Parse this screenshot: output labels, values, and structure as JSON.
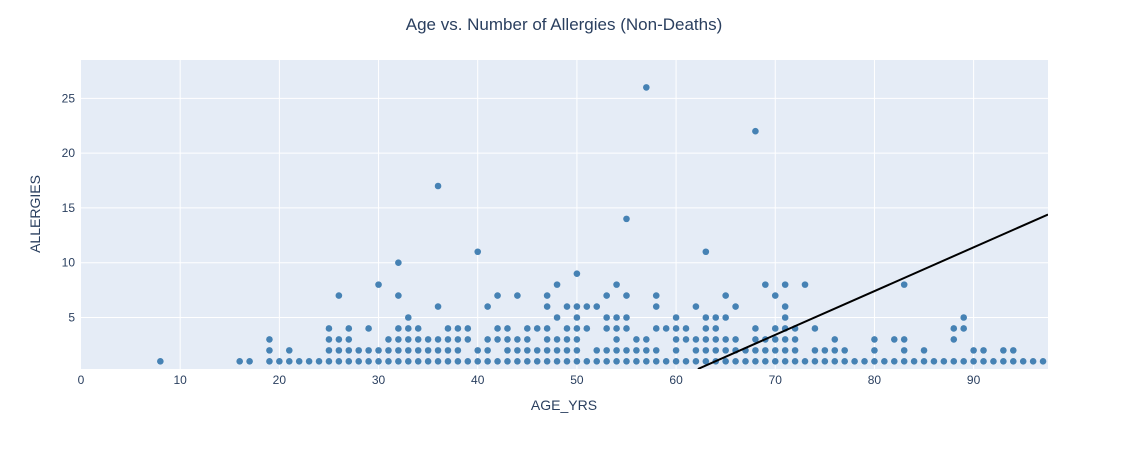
{
  "chart_data": {
    "type": "scatter",
    "title": "Age vs. Number of Allergies (Non-Deaths)",
    "xlabel": "AGE_YRS",
    "ylabel": "ALLERGIES",
    "xlim": [
      0,
      97.5
    ],
    "ylim": [
      0.3,
      28.5
    ],
    "xticks": [
      0,
      10,
      20,
      30,
      40,
      50,
      60,
      70,
      80,
      90
    ],
    "yticks": [
      5,
      10,
      15,
      20,
      25
    ],
    "grid": true,
    "legend": "none",
    "colors": {
      "background": "#e5ecf6",
      "grid": "#ffffff",
      "marker": "#4682b4",
      "trendline": "#000000",
      "text": "#2a3f5f"
    },
    "series": [
      {
        "points": [
          [
            8,
            1
          ],
          [
            16,
            1
          ],
          [
            17,
            1
          ],
          [
            19,
            1
          ],
          [
            19,
            2
          ],
          [
            19,
            3
          ],
          [
            20,
            1
          ],
          [
            21,
            1
          ],
          [
            21,
            2
          ],
          [
            22,
            1
          ],
          [
            23,
            1
          ],
          [
            24,
            1
          ],
          [
            25,
            1
          ],
          [
            25,
            2
          ],
          [
            25,
            3
          ],
          [
            25,
            4
          ],
          [
            26,
            1
          ],
          [
            26,
            2
          ],
          [
            26,
            3
          ],
          [
            26,
            7
          ],
          [
            27,
            1
          ],
          [
            27,
            2
          ],
          [
            27,
            3
          ],
          [
            27,
            4
          ],
          [
            28,
            1
          ],
          [
            28,
            2
          ],
          [
            29,
            1
          ],
          [
            29,
            2
          ],
          [
            29,
            4
          ],
          [
            30,
            1
          ],
          [
            30,
            2
          ],
          [
            30,
            8
          ],
          [
            31,
            1
          ],
          [
            31,
            2
          ],
          [
            31,
            3
          ],
          [
            32,
            1
          ],
          [
            32,
            2
          ],
          [
            32,
            3
          ],
          [
            32,
            4
          ],
          [
            32,
            7
          ],
          [
            32,
            10
          ],
          [
            33,
            1
          ],
          [
            33,
            2
          ],
          [
            33,
            3
          ],
          [
            33,
            4
          ],
          [
            33,
            5
          ],
          [
            34,
            1
          ],
          [
            34,
            2
          ],
          [
            34,
            3
          ],
          [
            34,
            4
          ],
          [
            35,
            1
          ],
          [
            35,
            2
          ],
          [
            35,
            3
          ],
          [
            36,
            1
          ],
          [
            36,
            2
          ],
          [
            36,
            3
          ],
          [
            36,
            6
          ],
          [
            36,
            17
          ],
          [
            37,
            1
          ],
          [
            37,
            2
          ],
          [
            37,
            3
          ],
          [
            37,
            4
          ],
          [
            38,
            1
          ],
          [
            38,
            2
          ],
          [
            38,
            3
          ],
          [
            38,
            4
          ],
          [
            39,
            1
          ],
          [
            39,
            3
          ],
          [
            39,
            4
          ],
          [
            40,
            1
          ],
          [
            40,
            2
          ],
          [
            40,
            11
          ],
          [
            41,
            1
          ],
          [
            41,
            2
          ],
          [
            41,
            3
          ],
          [
            41,
            6
          ],
          [
            42,
            1
          ],
          [
            42,
            3
          ],
          [
            42,
            4
          ],
          [
            42,
            7
          ],
          [
            43,
            1
          ],
          [
            43,
            2
          ],
          [
            43,
            3
          ],
          [
            43,
            4
          ],
          [
            44,
            1
          ],
          [
            44,
            2
          ],
          [
            44,
            3
          ],
          [
            44,
            7
          ],
          [
            45,
            1
          ],
          [
            45,
            2
          ],
          [
            45,
            3
          ],
          [
            45,
            4
          ],
          [
            46,
            1
          ],
          [
            46,
            2
          ],
          [
            46,
            4
          ],
          [
            47,
            1
          ],
          [
            47,
            2
          ],
          [
            47,
            3
          ],
          [
            47,
            4
          ],
          [
            47,
            6
          ],
          [
            47,
            7
          ],
          [
            48,
            1
          ],
          [
            48,
            2
          ],
          [
            48,
            3
          ],
          [
            48,
            5
          ],
          [
            48,
            8
          ],
          [
            49,
            1
          ],
          [
            49,
            2
          ],
          [
            49,
            3
          ],
          [
            49,
            4
          ],
          [
            49,
            6
          ],
          [
            50,
            1
          ],
          [
            50,
            2
          ],
          [
            50,
            3
          ],
          [
            50,
            4
          ],
          [
            50,
            5
          ],
          [
            50,
            6
          ],
          [
            50,
            9
          ],
          [
            51,
            1
          ],
          [
            51,
            4
          ],
          [
            51,
            6
          ],
          [
            52,
            1
          ],
          [
            52,
            2
          ],
          [
            52,
            6
          ],
          [
            53,
            1
          ],
          [
            53,
            2
          ],
          [
            53,
            4
          ],
          [
            53,
            5
          ],
          [
            53,
            7
          ],
          [
            54,
            1
          ],
          [
            54,
            2
          ],
          [
            54,
            3
          ],
          [
            54,
            4
          ],
          [
            54,
            5
          ],
          [
            54,
            8
          ],
          [
            55,
            1
          ],
          [
            55,
            2
          ],
          [
            55,
            4
          ],
          [
            55,
            5
          ],
          [
            55,
            7
          ],
          [
            55,
            14
          ],
          [
            56,
            1
          ],
          [
            56,
            2
          ],
          [
            56,
            3
          ],
          [
            57,
            1
          ],
          [
            57,
            2
          ],
          [
            57,
            3
          ],
          [
            57,
            26
          ],
          [
            58,
            1
          ],
          [
            58,
            2
          ],
          [
            58,
            4
          ],
          [
            58,
            6
          ],
          [
            58,
            7
          ],
          [
            59,
            1
          ],
          [
            59,
            4
          ],
          [
            60,
            1
          ],
          [
            60,
            2
          ],
          [
            60,
            3
          ],
          [
            60,
            4
          ],
          [
            60,
            5
          ],
          [
            61,
            1
          ],
          [
            61,
            3
          ],
          [
            61,
            4
          ],
          [
            62,
            1
          ],
          [
            62,
            2
          ],
          [
            62,
            3
          ],
          [
            62,
            6
          ],
          [
            63,
            1
          ],
          [
            63,
            2
          ],
          [
            63,
            3
          ],
          [
            63,
            4
          ],
          [
            63,
            5
          ],
          [
            63,
            11
          ],
          [
            64,
            1
          ],
          [
            64,
            2
          ],
          [
            64,
            3
          ],
          [
            64,
            4
          ],
          [
            64,
            5
          ],
          [
            65,
            1
          ],
          [
            65,
            2
          ],
          [
            65,
            3
          ],
          [
            65,
            5
          ],
          [
            65,
            7
          ],
          [
            66,
            1
          ],
          [
            66,
            2
          ],
          [
            66,
            3
          ],
          [
            66,
            6
          ],
          [
            67,
            1
          ],
          [
            67,
            2
          ],
          [
            68,
            1
          ],
          [
            68,
            2
          ],
          [
            68,
            3
          ],
          [
            68,
            4
          ],
          [
            68,
            22
          ],
          [
            69,
            1
          ],
          [
            69,
            2
          ],
          [
            69,
            3
          ],
          [
            69,
            8
          ],
          [
            70,
            1
          ],
          [
            70,
            2
          ],
          [
            70,
            3
          ],
          [
            70,
            4
          ],
          [
            70,
            7
          ],
          [
            71,
            1
          ],
          [
            71,
            2
          ],
          [
            71,
            3
          ],
          [
            71,
            4
          ],
          [
            71,
            5
          ],
          [
            71,
            6
          ],
          [
            71,
            8
          ],
          [
            72,
            1
          ],
          [
            72,
            2
          ],
          [
            72,
            3
          ],
          [
            72,
            4
          ],
          [
            73,
            1
          ],
          [
            73,
            8
          ],
          [
            74,
            1
          ],
          [
            74,
            2
          ],
          [
            74,
            4
          ],
          [
            75,
            1
          ],
          [
            75,
            2
          ],
          [
            76,
            1
          ],
          [
            76,
            2
          ],
          [
            76,
            3
          ],
          [
            77,
            1
          ],
          [
            77,
            2
          ],
          [
            78,
            1
          ],
          [
            79,
            1
          ],
          [
            80,
            1
          ],
          [
            80,
            2
          ],
          [
            80,
            3
          ],
          [
            81,
            1
          ],
          [
            82,
            1
          ],
          [
            82,
            3
          ],
          [
            83,
            1
          ],
          [
            83,
            2
          ],
          [
            83,
            3
          ],
          [
            83,
            8
          ],
          [
            84,
            1
          ],
          [
            85,
            1
          ],
          [
            85,
            2
          ],
          [
            86,
            1
          ],
          [
            87,
            1
          ],
          [
            88,
            1
          ],
          [
            88,
            3
          ],
          [
            88,
            4
          ],
          [
            89,
            1
          ],
          [
            89,
            4
          ],
          [
            89,
            5
          ],
          [
            90,
            1
          ],
          [
            90,
            2
          ],
          [
            91,
            1
          ],
          [
            91,
            2
          ],
          [
            92,
            1
          ],
          [
            93,
            1
          ],
          [
            93,
            2
          ],
          [
            94,
            1
          ],
          [
            94,
            2
          ],
          [
            95,
            1
          ],
          [
            96,
            1
          ],
          [
            97,
            1
          ]
        ]
      }
    ],
    "trendline": {
      "x": [
        62.2,
        97.5
      ],
      "y": [
        0.3,
        14.4
      ]
    }
  }
}
